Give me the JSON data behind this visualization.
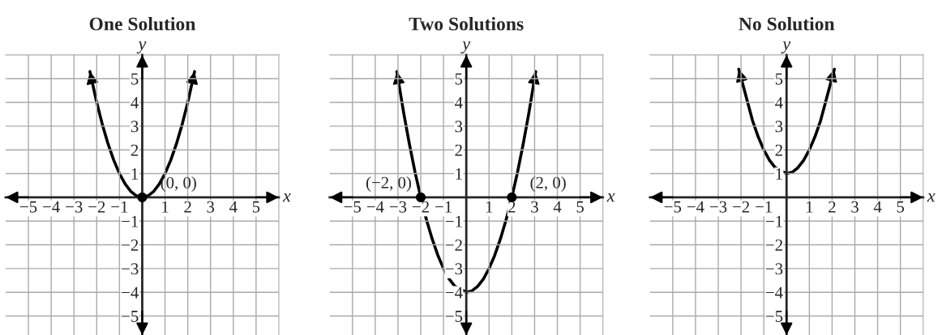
{
  "chart_data": [
    {
      "type": "line",
      "title": "One Solution",
      "xlabel": "x",
      "ylabel": "y",
      "xlim": [
        -6,
        6
      ],
      "ylim": [
        -5.8,
        6
      ],
      "xticks": [
        {
          "value": -5,
          "label": "−5"
        },
        {
          "value": -4,
          "label": "−4"
        },
        {
          "value": -3,
          "label": "−3"
        },
        {
          "value": -2,
          "label": "−2"
        },
        {
          "value": -1,
          "label": "−1"
        },
        1,
        2,
        3,
        4,
        5
      ],
      "yticks": [
        {
          "value": -5,
          "label": "−5"
        },
        {
          "value": -4,
          "label": "−4"
        },
        {
          "value": -3,
          "label": "−3"
        },
        {
          "value": -2,
          "label": "−2"
        },
        {
          "value": -1,
          "label": "−1"
        },
        1,
        2,
        3,
        4,
        5
      ],
      "grid": true,
      "series": [
        {
          "color": "#000000",
          "line_style": "solid",
          "marker": "none",
          "x": [
            -2.3,
            -2,
            -1.75,
            -1.5,
            -1.25,
            -1,
            -0.75,
            -0.5,
            -0.25,
            0,
            0.25,
            0.5,
            0.75,
            1,
            1.25,
            1.5,
            1.75,
            2,
            2.3
          ],
          "values": [
            5.3,
            4,
            3.06,
            2.25,
            1.56,
            1,
            0.56,
            0.25,
            0.06,
            0,
            0.06,
            0.25,
            0.56,
            1,
            1.56,
            2.25,
            3.06,
            4,
            5.3
          ]
        },
        {
          "type": "scatter",
          "color": "#000000",
          "marker": "circle",
          "x": [
            0
          ],
          "values": [
            0
          ]
        }
      ],
      "annotations": [
        {
          "text": "(0, 0)",
          "x": 0,
          "y": 0
        }
      ]
    },
    {
      "type": "line",
      "title": "Two Solutions",
      "xlabel": "x",
      "ylabel": "y",
      "xlim": [
        -6,
        6
      ],
      "ylim": [
        -5.8,
        6
      ],
      "xticks": [
        {
          "value": -5,
          "label": "−5"
        },
        {
          "value": -4,
          "label": "−4"
        },
        {
          "value": -3,
          "label": "−3"
        },
        {
          "value": -2,
          "label": "−2"
        },
        {
          "value": -1,
          "label": "−1"
        },
        1,
        2,
        3,
        4,
        5
      ],
      "yticks": [
        {
          "value": -5,
          "label": "−5"
        },
        {
          "value": -4,
          "label": "−4"
        },
        {
          "value": -3,
          "label": "−3"
        },
        {
          "value": -2,
          "label": "−2"
        },
        {
          "value": -1,
          "label": "−1"
        },
        1,
        2,
        3,
        4,
        5
      ],
      "grid": true,
      "series": [
        {
          "color": "#000000",
          "line_style": "solid",
          "marker": "none",
          "x": [
            -3.05,
            -2.75,
            -2.5,
            -2.25,
            -2,
            -1.75,
            -1.5,
            -1.25,
            -1,
            -0.75,
            -0.5,
            0,
            0.25,
            0.5,
            0.75,
            1,
            1.25,
            1.5,
            1.75,
            2,
            2.25,
            2.5,
            2.75,
            3.05
          ],
          "values": [
            5.3,
            3.56,
            2.25,
            1.06,
            0,
            -0.94,
            -1.75,
            -2.44,
            -3,
            -3.44,
            -3.75,
            -4,
            -3.94,
            -3.75,
            -3.44,
            -3,
            -2.44,
            -1.75,
            -0.94,
            0,
            1.06,
            2.25,
            3.56,
            5.3
          ]
        },
        {
          "type": "scatter",
          "color": "#000000",
          "marker": "circle",
          "x": [
            -2,
            2
          ],
          "values": [
            0,
            0
          ]
        }
      ],
      "annotations": [
        {
          "text": "(−2, 0)",
          "x": -2,
          "y": 0
        },
        {
          "text": "(2, 0)",
          "x": 2,
          "y": 0
        }
      ]
    },
    {
      "type": "line",
      "title": "No Solution",
      "xlabel": "x",
      "ylabel": "y",
      "xlim": [
        -6,
        6
      ],
      "ylim": [
        -5.8,
        6
      ],
      "xticks": [
        {
          "value": -5,
          "label": "−5"
        },
        {
          "value": -4,
          "label": "−4"
        },
        {
          "value": -3,
          "label": "−3"
        },
        {
          "value": -2,
          "label": "−2"
        },
        {
          "value": -1,
          "label": "−1"
        },
        1,
        2,
        3,
        4,
        5
      ],
      "yticks": [
        {
          "value": -5,
          "label": "−5"
        },
        {
          "value": -4,
          "label": "−4"
        },
        {
          "value": -3,
          "label": "−3"
        },
        {
          "value": -2,
          "label": "−2"
        },
        {
          "value": -1,
          "label": "−1"
        },
        1,
        2,
        3,
        4,
        5
      ],
      "grid": true,
      "series": [
        {
          "color": "#000000",
          "line_style": "solid",
          "marker": "none",
          "x": [
            -2.1,
            -1.5,
            -1.25,
            -1,
            -0.75,
            -0.5,
            0,
            0.25,
            0.5,
            0.75,
            1,
            1.25,
            1.5,
            2.1
          ],
          "values": [
            5.4,
            3.25,
            2.56,
            2,
            1.56,
            1.25,
            1,
            1.06,
            1.25,
            1.56,
            2,
            2.56,
            3.25,
            5.4
          ]
        }
      ]
    }
  ]
}
